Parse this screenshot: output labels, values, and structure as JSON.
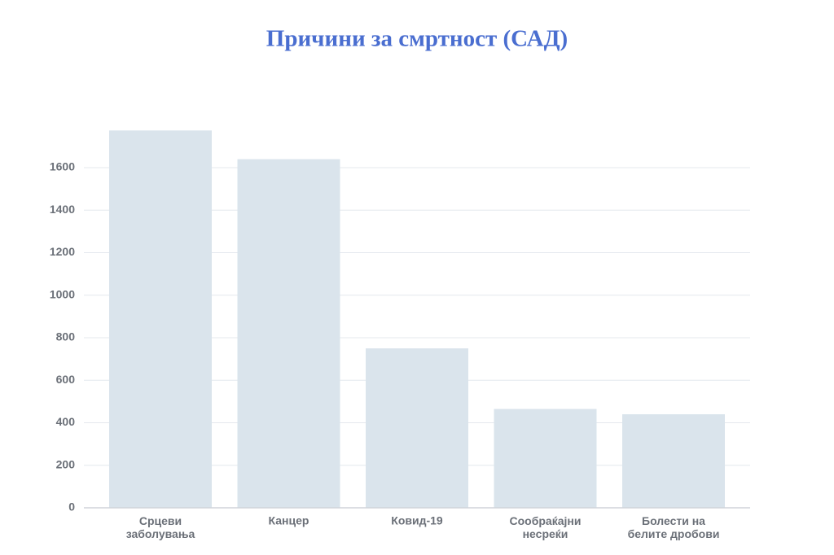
{
  "chart_data": {
    "type": "bar",
    "title": "Причини за смртност (САД)",
    "categories": [
      "Срцеви\nзаболувања",
      "Канцер",
      "Ковид-19",
      "Сообраќајни\nнесреќи",
      "Болести на\nбелите дробови"
    ],
    "values": [
      1775,
      1640,
      750,
      465,
      440
    ],
    "color": "#dae4ec",
    "ylim": [
      0,
      1800
    ],
    "yticks": [
      0,
      200,
      400,
      600,
      800,
      1000,
      1200,
      1400,
      1600
    ],
    "grid": true
  }
}
